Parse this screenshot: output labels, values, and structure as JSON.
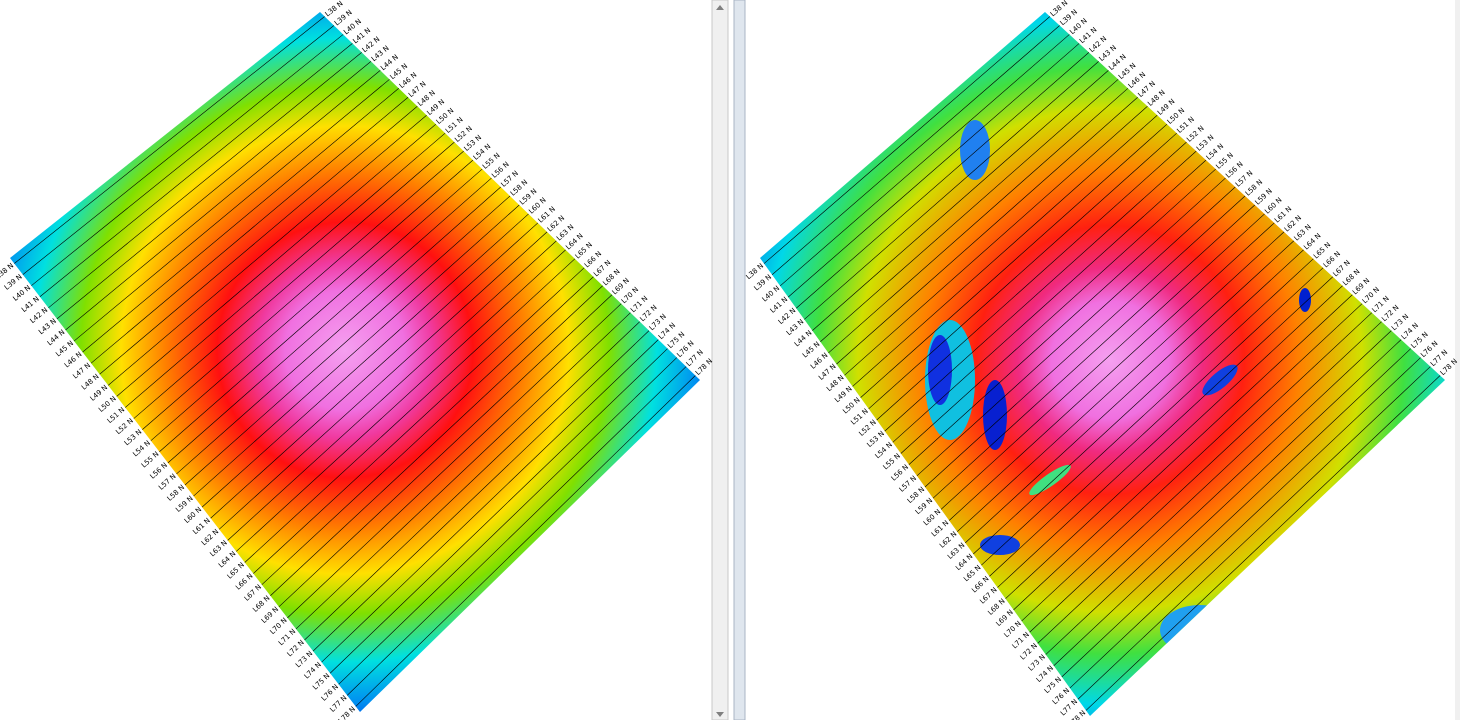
{
  "line_labels": [
    "L38 N",
    "L39 N",
    "L40 N",
    "L41 N",
    "L42 N",
    "L43 N",
    "L44 N",
    "L45 N",
    "L46 N",
    "L47 N",
    "L48 N",
    "L49 N",
    "L50 N",
    "L51 N",
    "L52 N",
    "L53 N",
    "L54 N",
    "L55 N",
    "L56 N",
    "L57 N",
    "L58 N",
    "L59 N",
    "L60 N",
    "L61 N",
    "L62 N",
    "L63 N",
    "L64 N",
    "L65 N",
    "L66 N",
    "L67 N",
    "L68 N",
    "L69 N",
    "L70 N",
    "L71 N",
    "L72 N",
    "L73 N",
    "L74 N",
    "L75 N",
    "L76 N",
    "L77 N",
    "L78 N"
  ]
}
